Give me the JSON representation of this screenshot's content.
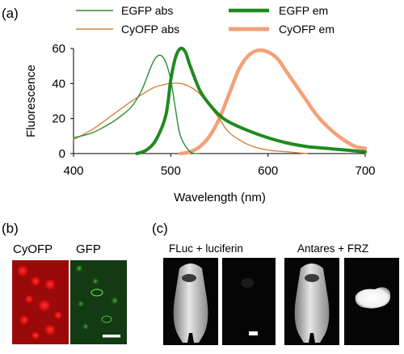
{
  "panels": {
    "a": "(a)",
    "b": "(b)",
    "c": "(c)"
  },
  "chart_data": {
    "type": "line",
    "title": "",
    "xlabel": "Wavelength (nm)",
    "ylabel": "Fluorescence",
    "xlim": [
      400,
      700
    ],
    "ylim": [
      0,
      60
    ],
    "xticks": [
      400,
      500,
      600,
      700
    ],
    "yticks": [
      0,
      20,
      40,
      60
    ],
    "grid": false,
    "legend": "top, two columns",
    "series": [
      {
        "name": "EGFP abs",
        "color": "#2e8b2e",
        "x": [
          400,
          420,
          440,
          450,
          460,
          470,
          480,
          485,
          490,
          495,
          500,
          505,
          510,
          520,
          530
        ],
        "y": [
          9,
          12,
          18,
          22,
          27,
          36,
          50,
          55,
          56,
          52,
          42,
          25,
          10,
          1,
          0
        ]
      },
      {
        "name": "EGFP em",
        "color": "#1f8a1f",
        "x": [
          465,
          475,
          485,
          495,
          500,
          505,
          510,
          515,
          520,
          530,
          540,
          550,
          560,
          580,
          600,
          620,
          640,
          660,
          680,
          700
        ],
        "y": [
          0,
          2,
          8,
          22,
          42,
          55,
          60,
          58,
          50,
          36,
          28,
          22,
          18,
          13,
          9,
          6,
          4,
          3,
          2,
          1
        ]
      },
      {
        "name": "CyOFP abs",
        "color": "#d2843c",
        "x": [
          400,
          420,
          440,
          460,
          480,
          490,
          500,
          510,
          520,
          530,
          540,
          550,
          560,
          580,
          600,
          620,
          640
        ],
        "y": [
          8,
          14,
          22,
          30,
          37,
          39,
          40,
          40,
          38,
          34,
          27,
          20,
          12,
          5,
          2,
          1,
          0
        ]
      },
      {
        "name": "CyOFP em",
        "color": "#f4a078",
        "x": [
          510,
          520,
          530,
          540,
          550,
          560,
          570,
          580,
          590,
          600,
          610,
          620,
          630,
          640,
          650,
          660,
          670,
          680,
          690,
          700
        ],
        "y": [
          0,
          1,
          4,
          10,
          20,
          34,
          48,
          56,
          59,
          58,
          54,
          46,
          38,
          30,
          22,
          16,
          11,
          7,
          4,
          3
        ]
      }
    ]
  },
  "panel_b": {
    "labels": [
      "CyOFP",
      "GFP"
    ]
  },
  "panel_c": {
    "labels": [
      "FLuc + luciferin",
      "Antares + FRZ"
    ]
  }
}
